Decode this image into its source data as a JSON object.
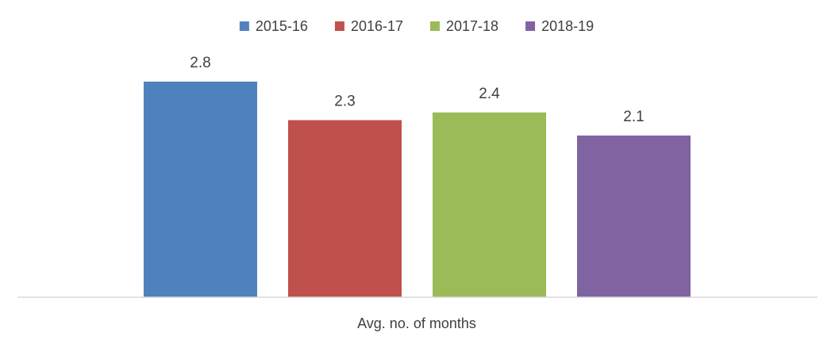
{
  "chart_data": {
    "type": "bar",
    "categories": [
      "Avg. no. of months"
    ],
    "series": [
      {
        "name": "2015-16",
        "values": [
          2.8
        ],
        "label": "2.8",
        "color": "#4F81BD"
      },
      {
        "name": "2016-17",
        "values": [
          2.3
        ],
        "label": "2.3",
        "color": "#C0504D"
      },
      {
        "name": "2017-18",
        "values": [
          2.4
        ],
        "label": "2.4",
        "color": "#9BBB59"
      },
      {
        "name": "2018-19",
        "values": [
          2.1
        ],
        "label": "2.1",
        "color": "#8064A2"
      }
    ],
    "xlabel": "Avg. no. of months",
    "ylim": [
      0,
      2.8
    ],
    "legend_position": "top",
    "grid": false,
    "data_labels": true
  }
}
